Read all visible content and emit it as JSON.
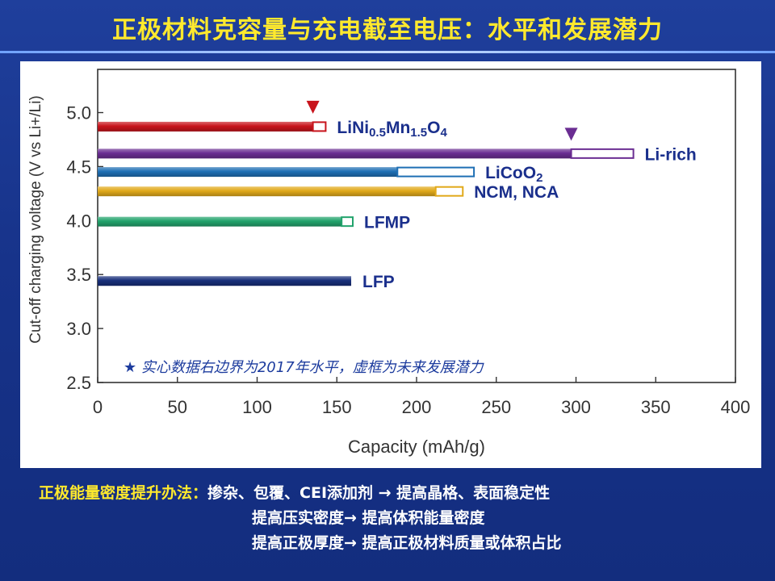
{
  "title": "正极材料克容量与充电截至电压：水平和发展潜力",
  "chart_data": {
    "type": "bar",
    "orientation": "horizontal",
    "xlabel": "Capacity (mAh/g)",
    "ylabel": "Cut-off charging voltage (V vs Li+/Li)",
    "xlim": [
      0,
      400
    ],
    "ylim": [
      2.5,
      5.4
    ],
    "xticks": [
      "0",
      "50",
      "100",
      "150",
      "200",
      "250",
      "300",
      "350",
      "400"
    ],
    "yticks": [
      "2.5",
      "3.0",
      "3.5",
      "4.0",
      "4.5",
      "5.0"
    ],
    "grid": false,
    "series": [
      {
        "id": "lini",
        "voltage": 4.87,
        "current": 135,
        "potential_from": 135,
        "potential_to": 143,
        "color": "#c8141c",
        "marker": true,
        "label": {
          "base1": "LiNi",
          "sub1": "0.5",
          "base2": "Mn",
          "sub2": "1.5",
          "base3": "O",
          "sub3": "4"
        }
      },
      {
        "id": "lirich",
        "voltage": 4.62,
        "current": 297,
        "potential_from": 297,
        "potential_to": 336,
        "color": "#6a2d92",
        "marker": true,
        "label": {
          "text": "Li-rich"
        }
      },
      {
        "id": "licoo2",
        "voltage": 4.45,
        "current": 188,
        "potential_from": 188,
        "potential_to": 236,
        "color": "#1e6fb4",
        "marker": false,
        "label": {
          "base1": "LiCoO",
          "sub1": "2"
        }
      },
      {
        "id": "ncm",
        "voltage": 4.27,
        "current": 212,
        "potential_from": 212,
        "potential_to": 229,
        "color": "#e1a91a",
        "marker": false,
        "label": {
          "text": "NCM, NCA"
        }
      },
      {
        "id": "lfmp",
        "voltage": 3.99,
        "current": 153,
        "potential_from": 153,
        "potential_to": 160,
        "color": "#22a36c",
        "marker": false,
        "label": {
          "text": "LFMP"
        }
      },
      {
        "id": "lfp",
        "voltage": 3.44,
        "current": 159,
        "potential_from": 159,
        "potential_to": 159,
        "color": "#182f7a",
        "marker": false,
        "label": {
          "text": "LFP"
        }
      }
    ],
    "annotation": "★ 实心数据右边界为2017年水平，虚框为未来发展潜力"
  },
  "methods": {
    "lead": "正极能量密度提升办法：",
    "lines": [
      "掺杂、包覆、CEI添加剂 → 提高晶格、表面稳定性",
      "提高压实密度→ 提高体积能量密度",
      "提高正极厚度→ 提高正极材料质量或体积占比"
    ]
  }
}
